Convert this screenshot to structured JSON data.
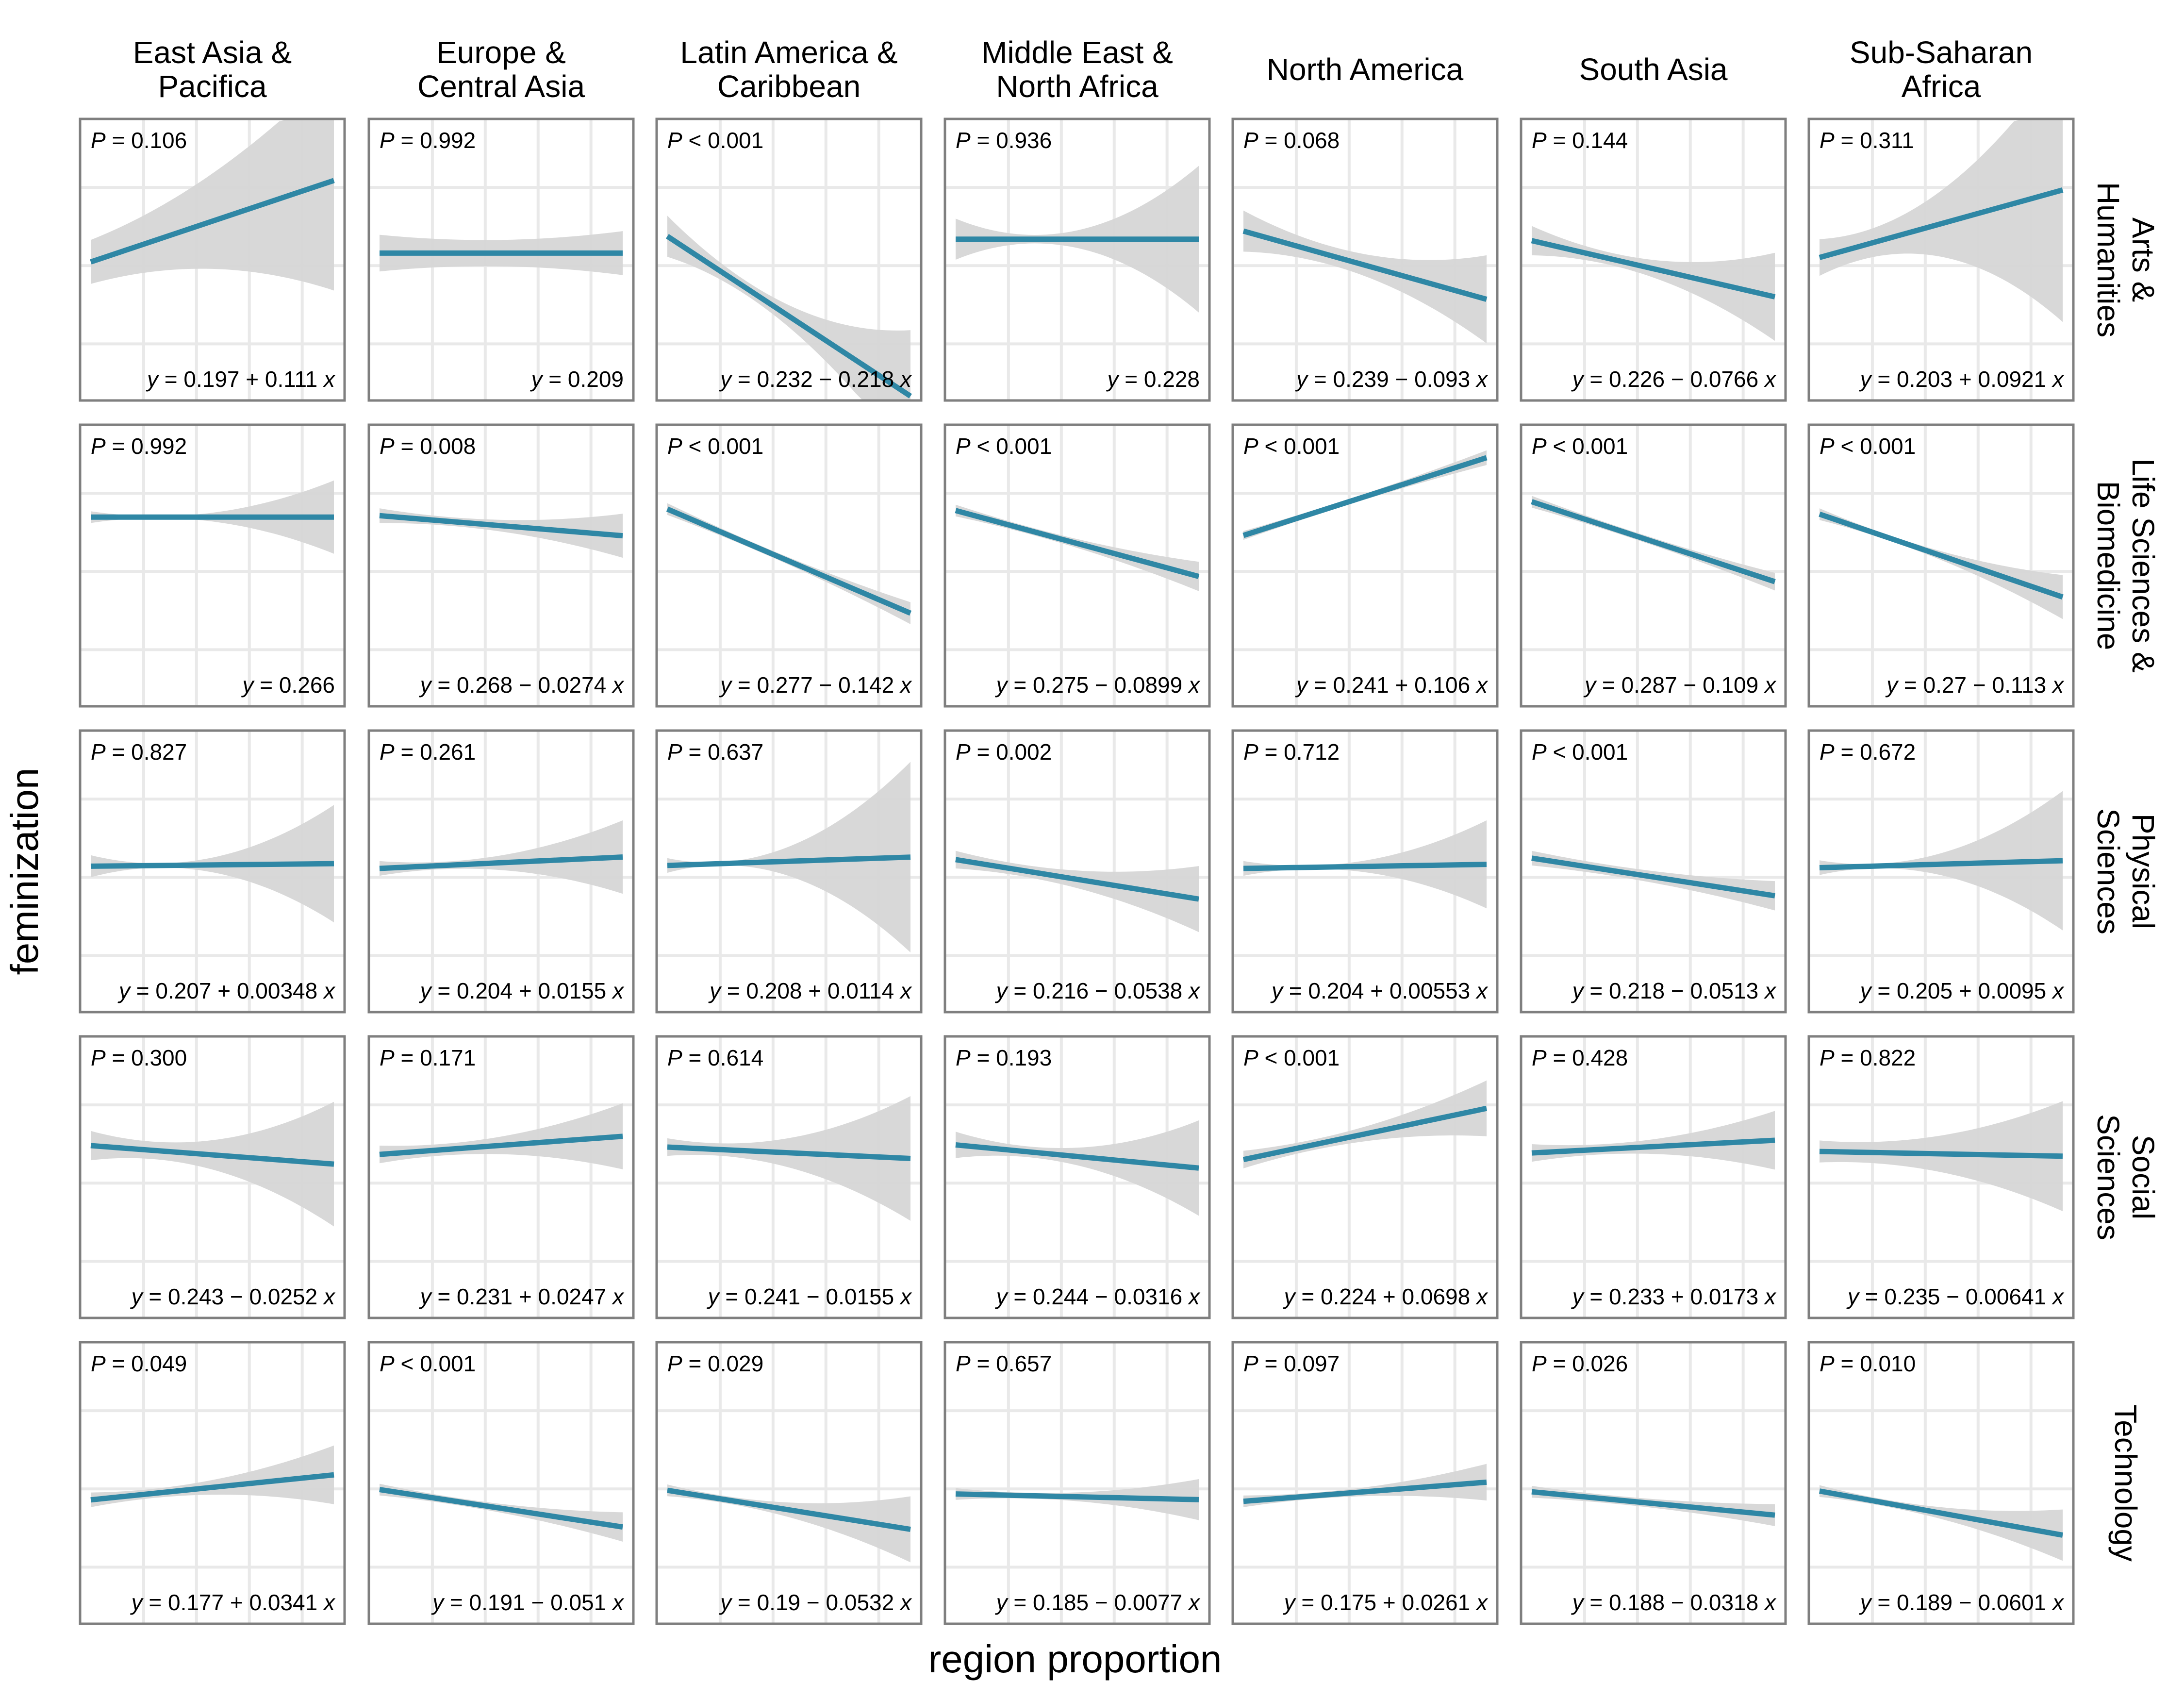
{
  "columns": [
    "East Asia & Pacifica",
    "Europe & Central Asia",
    "Latin America & Caribbean",
    "Middle East & North Africa",
    "North America",
    "South Asia",
    "Sub-Saharan Africa"
  ],
  "column_lines": [
    [
      "East Asia &",
      "Pacifica"
    ],
    [
      "Europe &",
      "Central Asia"
    ],
    [
      "Latin America &",
      "Caribbean"
    ],
    [
      "Middle East &",
      "North Africa"
    ],
    [
      "North America"
    ],
    [
      "South Asia"
    ],
    [
      "Sub-Saharan",
      "Africa"
    ]
  ],
  "rows": [
    "Arts & Humanities",
    "Life Sciences & Biomedicine",
    "Physical Sciences",
    "Social Sciences",
    "Technology"
  ],
  "row_lines": [
    [
      "Arts &",
      "Humanities"
    ],
    [
      "Life Sciences &",
      "Biomedicine"
    ],
    [
      "Physical",
      "Sciences"
    ],
    [
      "Social",
      "Sciences"
    ],
    [
      "Technology"
    ]
  ],
  "colors": {
    "line": "#2f87a5",
    "ribbon": "#d6d6d6",
    "grid": "#e9e9e9",
    "panel_border": "#7f7f7f"
  },
  "chart_data": {
    "type": "line",
    "xlabel": "region proportion",
    "ylabel": "feminization",
    "grid": true,
    "panels": [
      [
        {
          "p": "P = 0.106",
          "eq": "y = 0.197 + 0.111 x",
          "y0": 0.197,
          "slope": 0.111,
          "ci": [
            0.03,
            0.065,
            0.15
          ]
        },
        {
          "p": "P = 0.992",
          "eq": "y = 0.209",
          "y0": 0.209,
          "slope": 0.0,
          "ci": [
            0.025,
            0.018,
            0.03
          ]
        },
        {
          "p": "P < 0.001",
          "eq": "y = 0.232 − 0.218 x",
          "y0": 0.232,
          "slope": -0.218,
          "ci": [
            0.028,
            0.015,
            0.09
          ]
        },
        {
          "p": "P = 0.936",
          "eq": "y = 0.228",
          "y0": 0.228,
          "slope": 0.0,
          "ci": [
            0.028,
            0.012,
            0.1
          ]
        },
        {
          "p": "P = 0.068",
          "eq": "y = 0.239 − 0.093 x",
          "y0": 0.239,
          "slope": -0.093,
          "ci": [
            0.028,
            0.015,
            0.06
          ]
        },
        {
          "p": "P = 0.144",
          "eq": "y = 0.226 − 0.0766 x",
          "y0": 0.226,
          "slope": -0.0766,
          "ci": [
            0.02,
            0.012,
            0.06
          ]
        },
        {
          "p": "P = 0.311",
          "eq": "y = 0.203 + 0.0921 x",
          "y0": 0.203,
          "slope": 0.0921,
          "ci": [
            0.025,
            0.045,
            0.18
          ]
        }
      ],
      [
        {
          "p": "P = 0.992",
          "eq": "y = 0.266",
          "y0": 0.266,
          "slope": 0.0,
          "ci": [
            0.008,
            0.006,
            0.05
          ]
        },
        {
          "p": "P = 0.008",
          "eq": "y = 0.268 − 0.0274 x",
          "y0": 0.268,
          "slope": -0.0274,
          "ci": [
            0.01,
            0.008,
            0.03
          ]
        },
        {
          "p": "P < 0.001",
          "eq": "y = 0.277 − 0.142 x",
          "y0": 0.277,
          "slope": -0.142,
          "ci": [
            0.008,
            0.005,
            0.015
          ]
        },
        {
          "p": "P < 0.001",
          "eq": "y = 0.275 − 0.0899 x",
          "y0": 0.275,
          "slope": -0.0899,
          "ci": [
            0.008,
            0.006,
            0.02
          ]
        },
        {
          "p": "P < 0.001",
          "eq": "y = 0.241 + 0.106 x",
          "y0": 0.241,
          "slope": 0.106,
          "ci": [
            0.006,
            0.004,
            0.01
          ]
        },
        {
          "p": "P < 0.001",
          "eq": "y = 0.287 − 0.109 x",
          "y0": 0.287,
          "slope": -0.109,
          "ci": [
            0.008,
            0.005,
            0.012
          ]
        },
        {
          "p": "P < 0.001",
          "eq": "y = 0.27 − 0.113 x",
          "y0": 0.27,
          "slope": -0.113,
          "ci": [
            0.008,
            0.006,
            0.03
          ]
        }
      ],
      [
        {
          "p": "P = 0.827",
          "eq": "y = 0.207 + 0.00348 x",
          "y0": 0.207,
          "slope": 0.00348,
          "ci": [
            0.015,
            0.01,
            0.08
          ]
        },
        {
          "p": "P = 0.261",
          "eq": "y = 0.204 + 0.0155 x",
          "y0": 0.204,
          "slope": 0.0155,
          "ci": [
            0.01,
            0.01,
            0.05
          ]
        },
        {
          "p": "P = 0.637",
          "eq": "y = 0.208 + 0.0114 x",
          "y0": 0.208,
          "slope": 0.0114,
          "ci": [
            0.01,
            0.02,
            0.13
          ]
        },
        {
          "p": "P = 0.002",
          "eq": "y = 0.216 − 0.0538 x",
          "y0": 0.216,
          "slope": -0.0538,
          "ci": [
            0.012,
            0.012,
            0.045
          ]
        },
        {
          "p": "P = 0.712",
          "eq": "y = 0.204 + 0.00553 x",
          "y0": 0.204,
          "slope": 0.00553,
          "ci": [
            0.01,
            0.008,
            0.06
          ]
        },
        {
          "p": "P < 0.001",
          "eq": "y = 0.218 − 0.0513 x",
          "y0": 0.218,
          "slope": -0.0513,
          "ci": [
            0.01,
            0.008,
            0.02
          ]
        },
        {
          "p": "P = 0.672",
          "eq": "y = 0.205 + 0.0095 x",
          "y0": 0.205,
          "slope": 0.0095,
          "ci": [
            0.01,
            0.015,
            0.095
          ]
        }
      ],
      [
        {
          "p": "P = 0.300",
          "eq": "y = 0.243 − 0.0252 x",
          "y0": 0.243,
          "slope": -0.0252,
          "ci": [
            0.02,
            0.02,
            0.085
          ]
        },
        {
          "p": "P = 0.171",
          "eq": "y = 0.231 + 0.0247 x",
          "y0": 0.231,
          "slope": 0.0247,
          "ci": [
            0.012,
            0.012,
            0.045
          ]
        },
        {
          "p": "P = 0.614",
          "eq": "y = 0.241 − 0.0155 x",
          "y0": 0.241,
          "slope": -0.0155,
          "ci": [
            0.012,
            0.02,
            0.085
          ]
        },
        {
          "p": "P = 0.193",
          "eq": "y = 0.244 − 0.0316 x",
          "y0": 0.244,
          "slope": -0.0316,
          "ci": [
            0.018,
            0.012,
            0.065
          ]
        },
        {
          "p": "P < 0.001",
          "eq": "y = 0.224 + 0.0698 x",
          "y0": 0.224,
          "slope": 0.0698,
          "ci": [
            0.012,
            0.01,
            0.038
          ]
        },
        {
          "p": "P = 0.428",
          "eq": "y = 0.233 + 0.0173 x",
          "y0": 0.233,
          "slope": 0.0173,
          "ci": [
            0.012,
            0.01,
            0.04
          ]
        },
        {
          "p": "P = 0.822",
          "eq": "y = 0.235 − 0.00641 x",
          "y0": 0.235,
          "slope": -0.00641,
          "ci": [
            0.015,
            0.025,
            0.075
          ]
        }
      ],
      [
        {
          "p": "P = 0.049",
          "eq": "y = 0.177 + 0.0341 x",
          "y0": 0.177,
          "slope": 0.0341,
          "ci": [
            0.01,
            0.01,
            0.04
          ]
        },
        {
          "p": "P < 0.001",
          "eq": "y = 0.191 − 0.051 x",
          "y0": 0.191,
          "slope": -0.051,
          "ci": [
            0.008,
            0.006,
            0.02
          ]
        },
        {
          "p": "P = 0.029",
          "eq": "y = 0.19 − 0.0532 x",
          "y0": 0.19,
          "slope": -0.0532,
          "ci": [
            0.008,
            0.01,
            0.045
          ]
        },
        {
          "p": "P = 0.657",
          "eq": "y = 0.185 − 0.0077 x",
          "y0": 0.185,
          "slope": -0.0077,
          "ci": [
            0.008,
            0.006,
            0.028
          ]
        },
        {
          "p": "P = 0.097",
          "eq": "y = 0.175 + 0.0261 x",
          "y0": 0.175,
          "slope": 0.0261,
          "ci": [
            0.008,
            0.006,
            0.025
          ]
        },
        {
          "p": "P = 0.026",
          "eq": "y = 0.188 − 0.0318 x",
          "y0": 0.188,
          "slope": -0.0318,
          "ci": [
            0.008,
            0.006,
            0.015
          ]
        },
        {
          "p": "P = 0.010",
          "eq": "y = 0.189 − 0.0601 x",
          "y0": 0.189,
          "slope": -0.0601,
          "ci": [
            0.008,
            0.008,
            0.035
          ]
        }
      ]
    ]
  }
}
